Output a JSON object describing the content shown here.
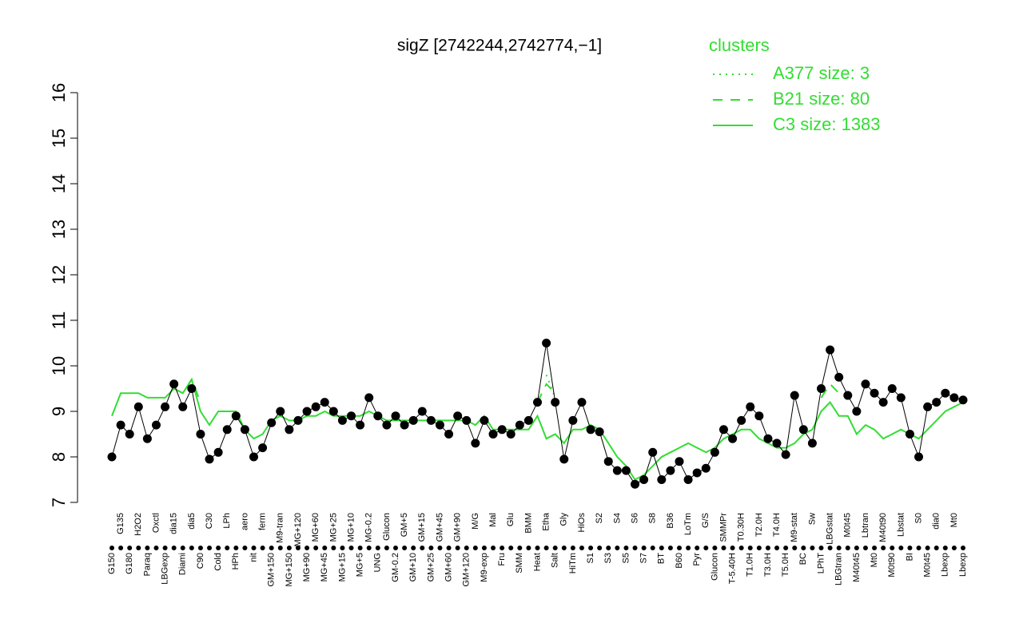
{
  "chart_data": {
    "type": "line",
    "title": "sigZ [2742244,2742774,−1]",
    "categories": [
      "G150",
      "G135",
      "G180",
      "H2O2",
      "Paraq",
      "Oxctl",
      "LBGexp",
      "dia15",
      "Diami",
      "dia5",
      "C90",
      "C30",
      "Cold",
      "LPh",
      "HPh",
      "aero",
      "nit",
      "ferm",
      "GM+150",
      "M9-tran",
      "MG+150",
      "MG+120",
      "MG+90",
      "MG+60",
      "MG+45",
      "MG+25",
      "MG+15",
      "MG+10",
      "MG+5",
      "MG-0.2",
      "UNG",
      "Glucon",
      "GM-0.2",
      "GM+5",
      "GM+10",
      "GM+15",
      "GM+25",
      "GM+45",
      "GM+60",
      "GM+90",
      "GM+120",
      "M/G",
      "M9-exp",
      "Mal",
      "Fru",
      "Glu",
      "SMM",
      "BMM",
      "Heat",
      "Etha",
      "Salt",
      "Gly",
      "HiTm",
      "HiOs",
      "S1",
      "S2",
      "S3",
      "S4",
      "S5",
      "S6",
      "S7",
      "S8",
      "BT",
      "B36",
      "B60",
      "LoTm",
      "Pyr",
      "G/S",
      "Glucon",
      "SMMPr",
      "T-5.40H",
      "T0.30H",
      "T1.0H",
      "T2.0H",
      "T3.0H",
      "T4.0H",
      "T5.0H",
      "M9-stat",
      "BC",
      "Sw",
      "LPhT",
      "LBGstat",
      "LBGtran",
      "M0t45",
      "M40t45",
      "Lbtran",
      "Mt0",
      "M40t90",
      "M0t90",
      "Lbstat",
      "BI",
      "S0",
      "M0t45",
      "dia0",
      "Lbexp",
      "Mt0",
      "Lbexp"
    ],
    "values": [
      8.0,
      8.7,
      8.5,
      9.1,
      8.4,
      8.7,
      9.1,
      9.6,
      9.1,
      9.5,
      8.5,
      7.95,
      8.1,
      8.6,
      8.9,
      8.6,
      8.0,
      8.2,
      8.75,
      9.0,
      8.6,
      8.8,
      9.0,
      9.1,
      9.2,
      9.0,
      8.8,
      8.9,
      8.7,
      9.3,
      8.9,
      8.7,
      8.9,
      8.7,
      8.8,
      9.0,
      8.8,
      8.7,
      8.5,
      8.9,
      8.8,
      8.3,
      8.8,
      8.5,
      8.6,
      8.5,
      8.7,
      8.8,
      9.2,
      10.5,
      9.2,
      7.95,
      8.8,
      9.2,
      8.6,
      8.55,
      7.9,
      7.7,
      7.7,
      7.4,
      7.5,
      8.1,
      7.5,
      7.7,
      7.9,
      7.5,
      7.65,
      7.75,
      8.1,
      8.6,
      8.4,
      8.8,
      9.1,
      8.9,
      8.4,
      8.3,
      8.05,
      9.35,
      8.6,
      8.3,
      9.5,
      10.35,
      9.75,
      9.35,
      9.0,
      9.6,
      9.4,
      9.2,
      9.5,
      9.3,
      8.5,
      8.0,
      9.1,
      9.2,
      9.4,
      9.3,
      9.25
    ],
    "color": "#000000",
    "legend_title": "clusters",
    "legend": "top-right",
    "series": [
      {
        "name": "A377 size: 3",
        "color": "#33dd33",
        "style": "dotted",
        "values": [
          null,
          null,
          null,
          null,
          null,
          null,
          null,
          null,
          null,
          null,
          null,
          null,
          null,
          null,
          null,
          null,
          null,
          null,
          null,
          null,
          null,
          null,
          null,
          null,
          null,
          null,
          null,
          null,
          null,
          null,
          null,
          null,
          null,
          null,
          null,
          null,
          null,
          null,
          null,
          null,
          null,
          null,
          null,
          null,
          null,
          null,
          null,
          null,
          null,
          9.8,
          9.3,
          null,
          null,
          null,
          null,
          null,
          null,
          null,
          null,
          null,
          null,
          null,
          null,
          null,
          null,
          null,
          null,
          null,
          null,
          null,
          null,
          null,
          null,
          null,
          null,
          null,
          null,
          null,
          null,
          null,
          null,
          null,
          null,
          null,
          null,
          null,
          null,
          null,
          null,
          null,
          null,
          null,
          null,
          null,
          null,
          null,
          null
        ]
      },
      {
        "name": "B21 size: 80",
        "color": "#33dd33",
        "style": "dashed",
        "values": [
          null,
          null,
          null,
          null,
          null,
          null,
          null,
          9.5,
          9.4,
          9.7,
          9.2,
          null,
          null,
          null,
          null,
          null,
          null,
          null,
          null,
          null,
          null,
          null,
          null,
          null,
          null,
          null,
          null,
          null,
          null,
          null,
          null,
          null,
          null,
          null,
          null,
          null,
          null,
          null,
          null,
          null,
          null,
          null,
          null,
          null,
          null,
          null,
          null,
          null,
          9.2,
          9.6,
          9.4,
          null,
          null,
          null,
          null,
          null,
          null,
          null,
          null,
          null,
          null,
          null,
          null,
          null,
          null,
          null,
          null,
          null,
          null,
          null,
          null,
          null,
          null,
          null,
          null,
          null,
          null,
          null,
          null,
          null,
          9.3,
          9.6,
          9.4,
          null,
          null,
          null,
          null,
          null,
          null,
          null,
          null,
          null,
          null,
          null,
          null,
          null,
          null
        ]
      },
      {
        "name": "C3 size: 1383",
        "color": "#33dd33",
        "style": "solid",
        "values": [
          8.9,
          9.4,
          9.4,
          9.4,
          9.3,
          9.3,
          9.3,
          9.5,
          9.4,
          9.7,
          9.0,
          8.7,
          9.0,
          9.0,
          9.0,
          8.6,
          8.4,
          8.5,
          8.8,
          8.9,
          8.8,
          8.8,
          8.9,
          8.9,
          9.0,
          8.9,
          8.9,
          8.9,
          8.9,
          9.0,
          8.9,
          8.8,
          8.8,
          8.8,
          8.8,
          8.8,
          8.8,
          8.8,
          8.8,
          8.8,
          8.8,
          8.7,
          8.9,
          8.6,
          8.6,
          8.6,
          8.6,
          8.6,
          8.9,
          8.4,
          8.5,
          8.3,
          8.6,
          8.6,
          8.7,
          8.6,
          8.3,
          8.0,
          7.8,
          7.5,
          7.6,
          7.8,
          8.0,
          8.1,
          8.2,
          8.3,
          8.2,
          8.1,
          8.2,
          8.4,
          8.5,
          8.6,
          8.6,
          8.4,
          8.3,
          8.2,
          8.2,
          8.3,
          8.5,
          8.6,
          9.0,
          9.2,
          8.9,
          8.9,
          8.5,
          8.7,
          8.6,
          8.4,
          8.5,
          8.6,
          8.5,
          8.4,
          8.6,
          8.8,
          9.0,
          9.1,
          9.2
        ]
      }
    ],
    "ylim": [
      7,
      16
    ],
    "yticks": [
      7,
      8,
      9,
      10,
      11,
      12,
      13,
      14,
      15,
      16
    ]
  }
}
